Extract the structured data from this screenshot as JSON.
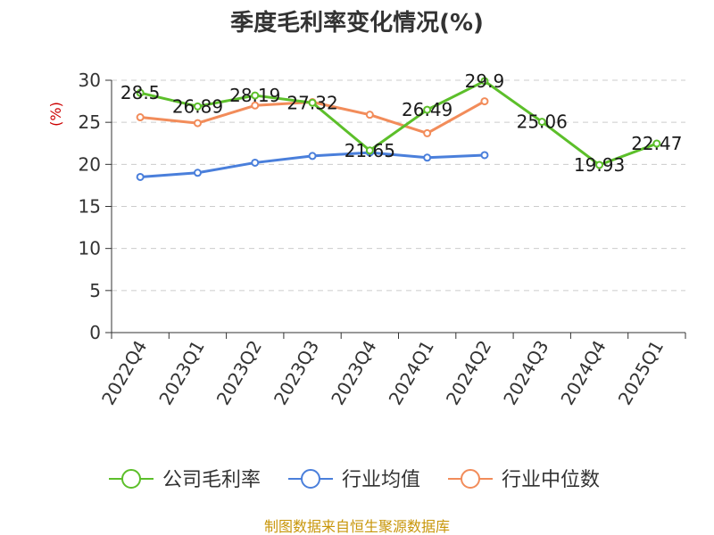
{
  "chart_data": {
    "type": "line",
    "title": "季度毛利率变化情况(%)",
    "ylabel": "(%)",
    "categories": [
      "2022Q4",
      "2023Q1",
      "2023Q2",
      "2023Q3",
      "2023Q4",
      "2024Q1",
      "2024Q2",
      "2024Q3",
      "2024Q4",
      "2025Q1"
    ],
    "ylim": [
      0,
      30
    ],
    "yticks": [
      0,
      5,
      10,
      15,
      20,
      25,
      30
    ],
    "grid": true,
    "legend_position": "bottom",
    "series": [
      {
        "name": "公司毛利率",
        "color": "#5cbf2a",
        "values": [
          28.5,
          26.89,
          28.19,
          27.32,
          21.65,
          26.49,
          29.9,
          25.06,
          19.93,
          22.47
        ],
        "labels": [
          "28.5",
          "26.89",
          "28.19",
          "27.32",
          "21.65",
          "26.49",
          "29.9",
          "25.06",
          "19.93",
          "22.47"
        ]
      },
      {
        "name": "行业均值",
        "color": "#4a7fdb",
        "values": [
          18.5,
          19.0,
          20.2,
          21.0,
          21.4,
          20.8,
          21.1,
          null,
          null,
          null
        ]
      },
      {
        "name": "行业中位数",
        "color": "#f28c5a",
        "values": [
          25.6,
          24.9,
          27.0,
          27.4,
          25.9,
          23.7,
          27.5,
          null,
          null,
          null
        ]
      }
    ]
  },
  "source": "制图数据来自恒生聚源数据库"
}
